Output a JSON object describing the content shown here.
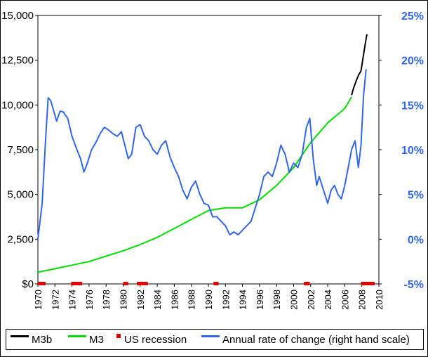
{
  "chart_data": {
    "type": "line",
    "title": "",
    "xlabel": "",
    "ylabel": "",
    "x_ticks": [
      "1970",
      "1972",
      "1974",
      "1976",
      "1978",
      "1980",
      "1982",
      "1984",
      "1986",
      "1988",
      "1990",
      "1992",
      "1994",
      "1996",
      "1998",
      "2000",
      "2002",
      "2004",
      "2006",
      "2008",
      "2010"
    ],
    "y_left_ticks": [
      "$0",
      "2,500",
      "5,000",
      "7,500",
      "10,000",
      "12,500",
      "15,000"
    ],
    "y_right_ticks": [
      "-5%",
      "0%",
      "5%",
      "10%",
      "15%",
      "20%",
      "25%"
    ],
    "xlim": [
      1970,
      2010
    ],
    "ylim_left": [
      0,
      15000
    ],
    "ylim_right": [
      -5,
      25
    ],
    "colors": {
      "m3b": "#000000",
      "m3": "#00e000",
      "recession": "#e00000",
      "rate": "#3366e6",
      "right_axis": "#3366e6"
    },
    "series": [
      {
        "name": "M3b",
        "axis": "left",
        "x": [
          2006.8,
          2007.0,
          2007.3,
          2007.6,
          2007.9,
          2008.1,
          2008.3,
          2008.5,
          2008.6
        ],
        "values": [
          10550,
          10900,
          11300,
          11650,
          11900,
          12500,
          13100,
          13700,
          13950
        ]
      },
      {
        "name": "M3",
        "axis": "left",
        "x": [
          1970,
          1972,
          1974,
          1976,
          1978,
          1980,
          1982,
          1984,
          1986,
          1988,
          1990,
          1992,
          1994,
          1996,
          1998,
          2000,
          2002,
          2004,
          2006,
          2006.8
        ],
        "values": [
          650,
          850,
          1050,
          1250,
          1550,
          1850,
          2200,
          2600,
          3100,
          3600,
          4100,
          4250,
          4250,
          4700,
          5500,
          6500,
          7900,
          9000,
          9800,
          10450
        ]
      },
      {
        "name": "Annual rate of change (right hand scale)",
        "axis": "right",
        "x": [
          1970,
          1970.5,
          1970.9,
          1971.2,
          1971.5,
          1971.8,
          1972.2,
          1972.6,
          1973.0,
          1973.5,
          1974.0,
          1974.5,
          1975.0,
          1975.4,
          1975.8,
          1976.3,
          1976.8,
          1977.3,
          1977.8,
          1978.3,
          1978.8,
          1979.3,
          1979.8,
          1980.2,
          1980.6,
          1981.0,
          1981.5,
          1982.0,
          1982.5,
          1983.0,
          1983.5,
          1984.0,
          1984.5,
          1985.0,
          1985.5,
          1986.0,
          1986.5,
          1987.0,
          1987.5,
          1988.0,
          1988.5,
          1989.0,
          1989.5,
          1990.0,
          1990.5,
          1991.0,
          1991.5,
          1992.0,
          1992.5,
          1993.0,
          1993.5,
          1994.0,
          1994.5,
          1995.0,
          1995.5,
          1996.0,
          1996.5,
          1997.0,
          1997.5,
          1998.0,
          1998.5,
          1999.0,
          1999.5,
          2000.0,
          2000.5,
          2001.0,
          2001.5,
          2001.9,
          2002.3,
          2002.7,
          2003.0,
          2003.5,
          2004.0,
          2004.4,
          2004.8,
          2005.2,
          2005.6,
          2006.0,
          2006.4,
          2006.8,
          2007.2,
          2007.6,
          2007.9,
          2008.2,
          2008.5
        ],
        "values": [
          0,
          4,
          11,
          15.8,
          15.5,
          14.5,
          13.2,
          14.3,
          14.2,
          13.5,
          11.5,
          10.2,
          9.0,
          7.5,
          8.5,
          10,
          10.8,
          11.8,
          12.5,
          12.2,
          11.8,
          11.5,
          12.0,
          10.5,
          9.0,
          9.5,
          12.5,
          12.8,
          11.5,
          11.0,
          10.0,
          9.5,
          10.5,
          11.0,
          9.2,
          8.0,
          7.0,
          5.5,
          4.5,
          5.8,
          6.5,
          5.0,
          4.0,
          3.8,
          2.5,
          2.5,
          2.0,
          1.5,
          0.5,
          0.8,
          0.5,
          1.0,
          1.5,
          2.0,
          3.5,
          5.0,
          7.0,
          7.5,
          7.0,
          8.5,
          10.5,
          9.5,
          7.5,
          8.5,
          8.0,
          9.5,
          12.5,
          13.5,
          9.0,
          6.0,
          7.0,
          5.5,
          4.0,
          5.5,
          6.0,
          5.0,
          4.5,
          6.0,
          8.0,
          10.0,
          11.0,
          8.0,
          10.5,
          16.0,
          19.0
        ]
      }
    ],
    "recessions": {
      "name": "US recession",
      "periods": [
        [
          1970.0,
          1970.9
        ],
        [
          1973.9,
          1975.2
        ],
        [
          1980.0,
          1980.6
        ],
        [
          1981.6,
          1982.9
        ],
        [
          1990.6,
          1991.2
        ],
        [
          2001.2,
          2001.9
        ],
        [
          2007.9,
          2009.5
        ]
      ]
    }
  },
  "legend": {
    "m3b": "M3b",
    "m3": "M3",
    "recession": "US recession",
    "rate": "Annual rate of change (right hand scale)"
  }
}
